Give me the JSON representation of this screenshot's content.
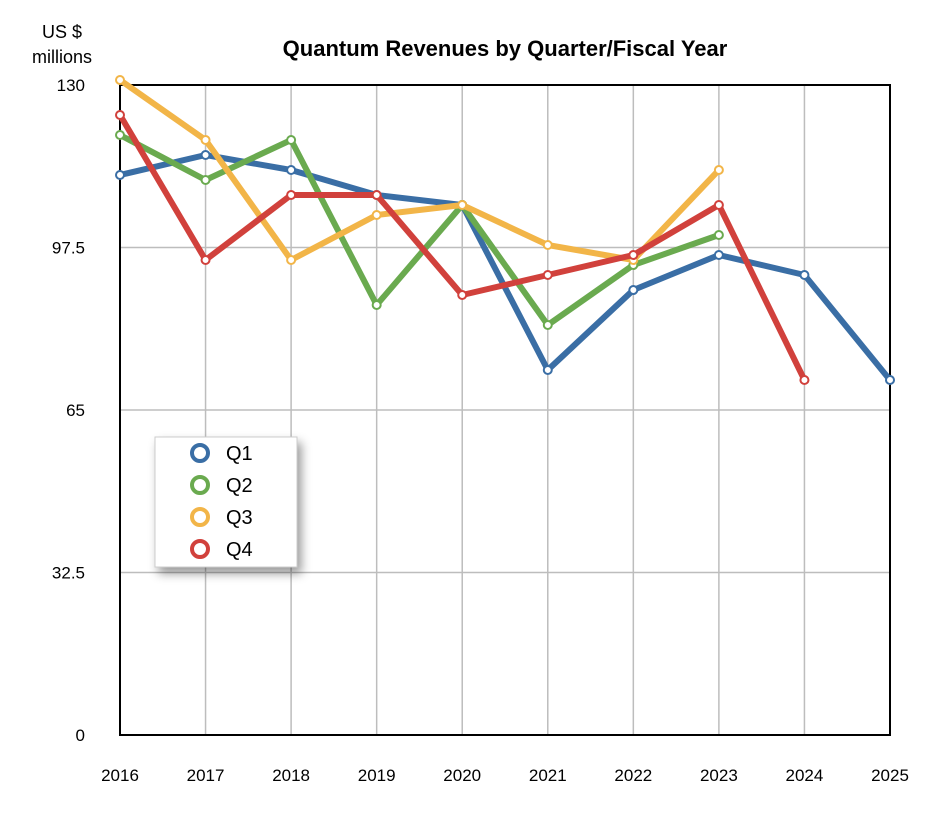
{
  "chart_data": {
    "type": "line",
    "title": "Quantum Revenues by Quarter/Fiscal Year",
    "ylabel_line1": "US $",
    "ylabel_line2": "millions",
    "xlabel": "",
    "x": [
      "2016",
      "2017",
      "2018",
      "2019",
      "2020",
      "2021",
      "2022",
      "2023",
      "2024",
      "2025"
    ],
    "y_ticks": [
      "130",
      "97.5",
      "65",
      "32.5",
      "0"
    ],
    "ylim": [
      0,
      130
    ],
    "grid": true,
    "legend_position": "left-middle",
    "series": [
      {
        "name": "Q1",
        "color": "#3a6ea5",
        "values": [
          112,
          116,
          113,
          108,
          106,
          73,
          89,
          96,
          92,
          71
        ]
      },
      {
        "name": "Q2",
        "color": "#6aaa4f",
        "values": [
          120,
          111,
          119,
          86,
          106,
          82,
          94,
          100,
          null,
          null
        ]
      },
      {
        "name": "Q3",
        "color": "#f2b548",
        "values": [
          131,
          119,
          95,
          104,
          106,
          98,
          95,
          113,
          null,
          null
        ]
      },
      {
        "name": "Q4",
        "color": "#d1413c",
        "values": [
          124,
          95,
          108,
          108,
          88,
          92,
          96,
          106,
          71,
          null
        ]
      }
    ]
  }
}
